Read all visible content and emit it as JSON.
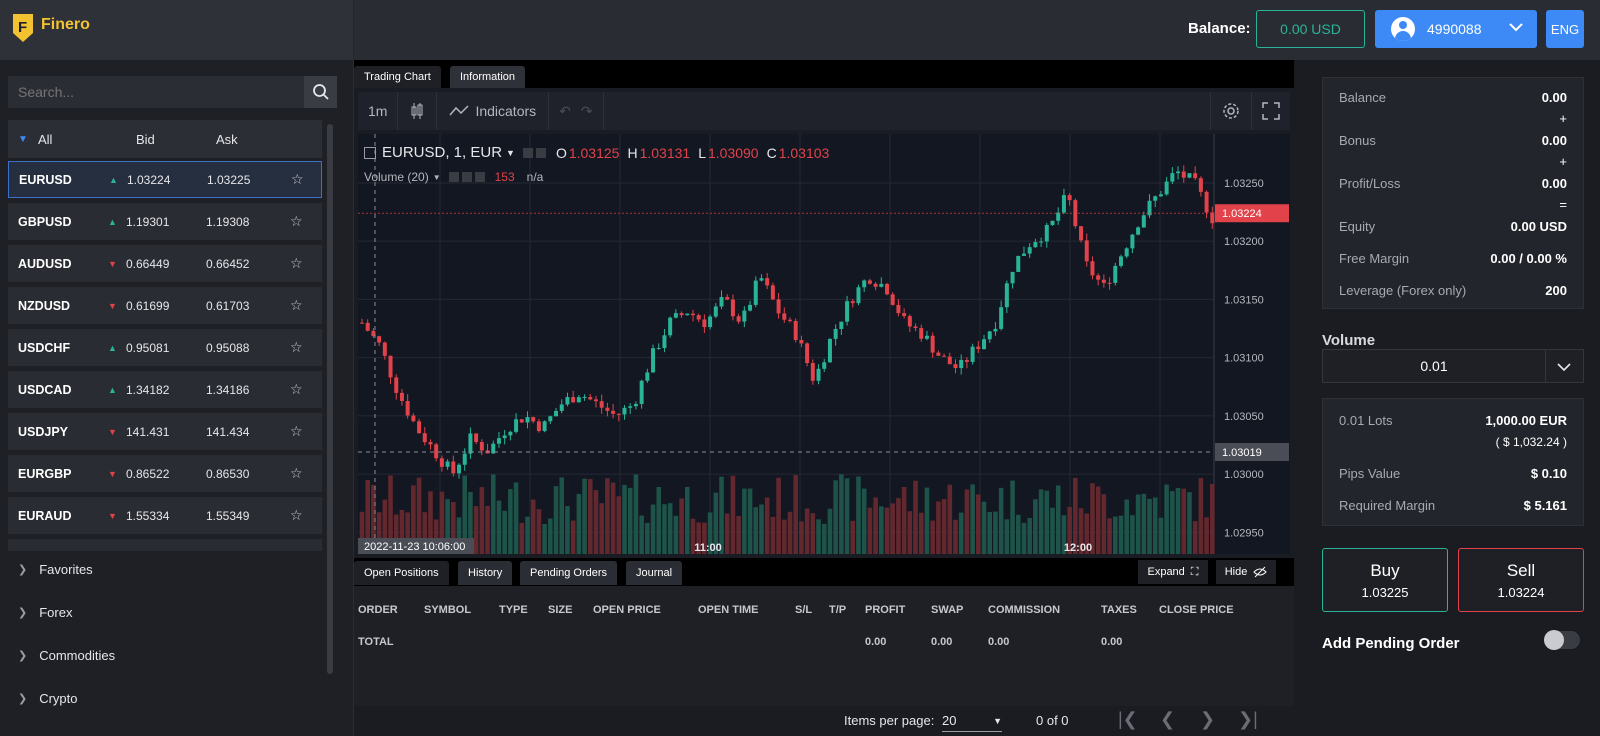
{
  "brand": {
    "name": "Finero",
    "logo_letter": "F"
  },
  "header": {
    "balance_label": "Balance:",
    "balance_value": "0.00 USD",
    "account_id": "4990088",
    "language": "ENG"
  },
  "sidebar": {
    "search_placeholder": "Search...",
    "columns": {
      "all": "All",
      "bid": "Bid",
      "ask": "Ask"
    },
    "symbols": [
      {
        "name": "EURUSD",
        "dir": "up",
        "bid": "1.03224",
        "ask": "1.03225"
      },
      {
        "name": "GBPUSD",
        "dir": "up",
        "bid": "1.19301",
        "ask": "1.19308"
      },
      {
        "name": "AUDUSD",
        "dir": "down",
        "bid": "0.66449",
        "ask": "0.66452"
      },
      {
        "name": "NZDUSD",
        "dir": "down",
        "bid": "0.61699",
        "ask": "0.61703"
      },
      {
        "name": "USDCHF",
        "dir": "up",
        "bid": "0.95081",
        "ask": "0.95088"
      },
      {
        "name": "USDCAD",
        "dir": "up",
        "bid": "1.34182",
        "ask": "1.34186"
      },
      {
        "name": "USDJPY",
        "dir": "down",
        "bid": "141.431",
        "ask": "141.434"
      },
      {
        "name": "EURGBP",
        "dir": "down",
        "bid": "0.86522",
        "ask": "0.86530"
      },
      {
        "name": "EURAUD",
        "dir": "down",
        "bid": "1.55334",
        "ask": "1.55349"
      }
    ],
    "categories": [
      "Favorites",
      "Forex",
      "Commodities",
      "Crypto"
    ]
  },
  "chart_tabs": {
    "trading": "Trading Chart",
    "info": "Information"
  },
  "chart_toolbar": {
    "interval": "1m",
    "indicators": "Indicators"
  },
  "chart_legend": {
    "symbol": "EURUSD, 1, EUR",
    "o_label": "O",
    "o": "1.03125",
    "h_label": "H",
    "h": "1.03131",
    "l_label": "L",
    "l": "1.03090",
    "c_label": "C",
    "c": "1.03103",
    "volume_label": "Volume (20)",
    "volume_value": "153",
    "volume_na": "n/a"
  },
  "chart_data": {
    "type": "candlestick",
    "symbol": "EURUSD",
    "interval": "1m",
    "y_ticks": [
      "1.03250",
      "1.03200",
      "1.03150",
      "1.03100",
      "1.03050",
      "1.03000",
      "1.02950"
    ],
    "x_ticks": [
      "11:00",
      "12:00"
    ],
    "ylim": [
      1.0294,
      1.0328
    ],
    "last_price": "1.03224",
    "crosshair_price": "1.03019",
    "crosshair_time": "2022-11-23 10:06:00",
    "close_path": [
      1.0313,
      1.0311,
      1.0307,
      1.0304,
      1.0302,
      1.03,
      1.0303,
      1.0302,
      1.0304,
      1.0305,
      1.0304,
      1.0306,
      1.0307,
      1.0306,
      1.0305,
      1.0306,
      1.031,
      1.0313,
      1.0314,
      1.0313,
      1.0315,
      1.0313,
      1.0317,
      1.0314,
      1.0312,
      1.0308,
      1.0312,
      1.0315,
      1.0317,
      1.0316,
      1.0313,
      1.0312,
      1.031,
      1.0309,
      1.0311,
      1.0313,
      1.0318,
      1.032,
      1.0321,
      1.0324,
      1.0318,
      1.0316,
      1.0319,
      1.0322,
      1.0324,
      1.0326,
      1.0325,
      1.0322
    ]
  },
  "bottom_tabs": [
    "Open Positions",
    "History",
    "Pending Orders",
    "Journal"
  ],
  "bottom_actions": {
    "expand": "Expand",
    "hide": "Hide"
  },
  "positions": {
    "columns": [
      "ORDER",
      "SYMBOL",
      "TYPE",
      "SIZE",
      "OPEN PRICE",
      "OPEN TIME",
      "S/L",
      "T/P",
      "PROFIT",
      "SWAP",
      "COMMISSION",
      "TAXES",
      "CLOSE PRICE"
    ],
    "total_label": "TOTAL",
    "totals": {
      "profit": "0.00",
      "swap": "0.00",
      "commission": "0.00",
      "taxes": "0.00"
    }
  },
  "pager": {
    "label": "Items per page:",
    "value": "20",
    "range": "0 of 0"
  },
  "account_summary": {
    "balance_label": "Balance",
    "balance": "0.00",
    "bonus_label": "Bonus",
    "bonus": "0.00",
    "pl_label": "Profit/Loss",
    "pl": "0.00",
    "equity_label": "Equity",
    "equity": "0.00 USD",
    "free_margin_label": "Free Margin",
    "free_margin": "0.00 / 0.00 %",
    "leverage_label": "Leverage (Forex only)",
    "leverage": "200",
    "plus": "+",
    "equals": "="
  },
  "order": {
    "volume_label": "Volume",
    "volume_value": "0.01",
    "lots_label": "0.01 Lots",
    "lots_value": "1,000.00 EUR",
    "lots_usd": "( $ 1,032.24 )",
    "pips_label": "Pips Value",
    "pips_value": "$ 0.10",
    "margin_label": "Required Margin",
    "margin_value": "$ 5.161",
    "buy_label": "Buy",
    "buy_price": "1.03225",
    "sell_label": "Sell",
    "sell_price": "1.03224",
    "pending_label": "Add Pending Order"
  },
  "colors": {
    "up": "#29b497",
    "down": "#e2424a",
    "accent": "#3d8af7",
    "brand": "#f2c230"
  }
}
